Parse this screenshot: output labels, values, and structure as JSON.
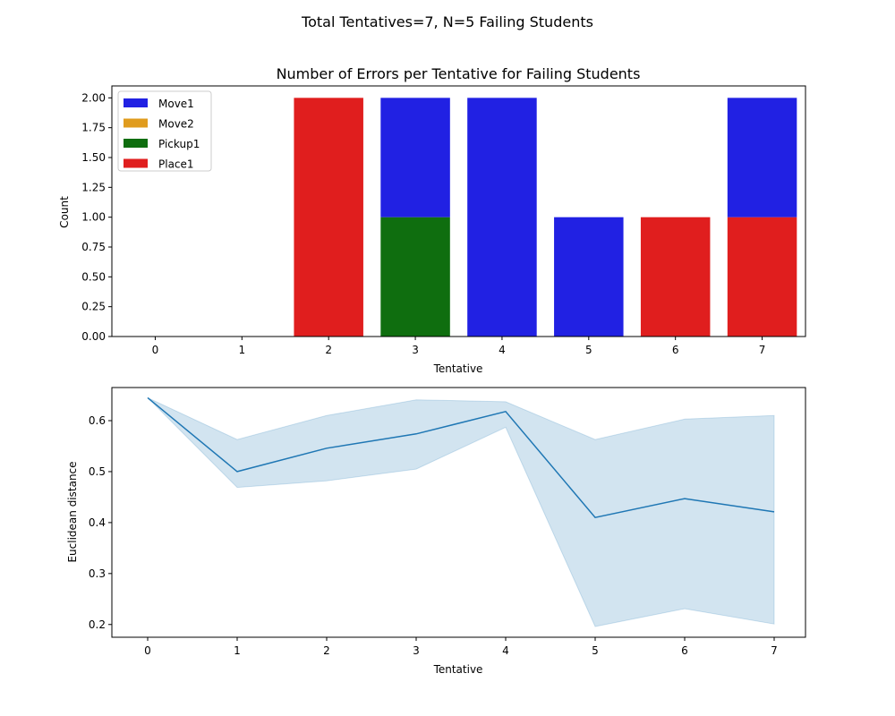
{
  "figure": {
    "suptitle": "Total Tentatives=7, N=5 Failing Students"
  },
  "chart_data": [
    {
      "type": "bar",
      "stacked": true,
      "title": "Number of Errors per Tentative for Failing Students",
      "xlabel": "Tentative",
      "ylabel": "Count",
      "categories": [
        "0",
        "1",
        "2",
        "3",
        "4",
        "5",
        "6",
        "7"
      ],
      "ylim": [
        0,
        2.1
      ],
      "yticks": [
        0.0,
        0.25,
        0.5,
        0.75,
        1.0,
        1.25,
        1.5,
        1.75,
        2.0
      ],
      "ytick_labels": [
        "0.00",
        "0.25",
        "0.50",
        "0.75",
        "1.00",
        "1.25",
        "1.50",
        "1.75",
        "2.00"
      ],
      "legend_position": "top-left",
      "series": [
        {
          "name": "Move1",
          "color": "#2121e3",
          "values": [
            0,
            0,
            0,
            1,
            2,
            1,
            0,
            1
          ]
        },
        {
          "name": "Move2",
          "color": "#e09c1e",
          "values": [
            0,
            0,
            0,
            0,
            0,
            0,
            0,
            0
          ]
        },
        {
          "name": "Pickup1",
          "color": "#0f6e0f",
          "values": [
            0,
            0,
            0,
            1,
            0,
            0,
            0,
            0
          ]
        },
        {
          "name": "Place1",
          "color": "#e01e1e",
          "values": [
            0,
            0,
            2,
            0,
            0,
            0,
            1,
            1
          ]
        }
      ],
      "stack_order": [
        "Place1",
        "Pickup1",
        "Move1",
        "Move2"
      ]
    },
    {
      "type": "line",
      "xlabel": "Tentative",
      "ylabel": "Euclidean distance",
      "x": [
        0,
        1,
        2,
        3,
        4,
        5,
        6,
        7
      ],
      "xticks": [
        "0",
        "1",
        "2",
        "3",
        "4",
        "5",
        "6",
        "7"
      ],
      "xlim": [
        -0.4,
        7.35
      ],
      "ylim": [
        0.175,
        0.665
      ],
      "yticks": [
        0.2,
        0.3,
        0.4,
        0.5,
        0.6
      ],
      "ytick_labels": [
        "0.2",
        "0.3",
        "0.4",
        "0.5",
        "0.6"
      ],
      "series": [
        {
          "color": "#1f77b4",
          "values": [
            0.645,
            0.5,
            0.546,
            0.574,
            0.618,
            0.41,
            0.447,
            0.421
          ],
          "band_lower": [
            0.645,
            0.469,
            0.482,
            0.505,
            0.587,
            0.196,
            0.231,
            0.201
          ],
          "band_upper": [
            0.645,
            0.563,
            0.61,
            0.641,
            0.637,
            0.563,
            0.603,
            0.61
          ],
          "band_color": "#1f77b4"
        }
      ]
    }
  ]
}
